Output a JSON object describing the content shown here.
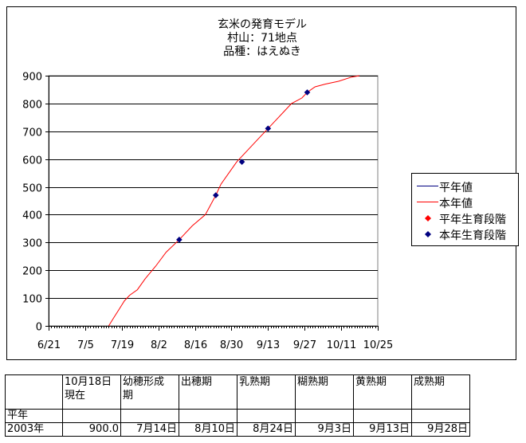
{
  "chart_data": {
    "type": "line",
    "title_lines": [
      "玄米の発育モデル",
      "村山：71地点",
      "品種：はえぬき"
    ],
    "xlabel": "",
    "ylabel": "",
    "x_tick_labels": [
      "6/21",
      "7/5",
      "7/19",
      "8/2",
      "8/16",
      "8/30",
      "9/13",
      "9/27",
      "10/11",
      "10/25"
    ],
    "xlim": [
      "6/21",
      "10/25"
    ],
    "ylim": [
      0,
      900
    ],
    "y_ticks": [
      0,
      100,
      200,
      300,
      400,
      500,
      600,
      700,
      800,
      900
    ],
    "grid": "horizontal",
    "legend_position": "right",
    "series": [
      {
        "name": "平年値",
        "kind": "line",
        "color": "#000080",
        "points": []
      },
      {
        "name": "本年値",
        "kind": "line",
        "color": "#ff0000",
        "points": [
          {
            "x": "7/14",
            "y": 0
          },
          {
            "x": "7/16",
            "y": 30
          },
          {
            "x": "7/18",
            "y": 60
          },
          {
            "x": "7/20",
            "y": 90
          },
          {
            "x": "7/22",
            "y": 110
          },
          {
            "x": "7/25",
            "y": 130
          },
          {
            "x": "7/28",
            "y": 170
          },
          {
            "x": "8/1",
            "y": 215
          },
          {
            "x": "8/5",
            "y": 265
          },
          {
            "x": "8/10",
            "y": 310
          },
          {
            "x": "8/15",
            "y": 360
          },
          {
            "x": "8/20",
            "y": 400
          },
          {
            "x": "8/24",
            "y": 470
          },
          {
            "x": "8/26",
            "y": 510
          },
          {
            "x": "8/29",
            "y": 550
          },
          {
            "x": "9/1",
            "y": 590
          },
          {
            "x": "9/5",
            "y": 630
          },
          {
            "x": "9/9",
            "y": 670
          },
          {
            "x": "9/13",
            "y": 710
          },
          {
            "x": "9/16",
            "y": 740
          },
          {
            "x": "9/19",
            "y": 770
          },
          {
            "x": "9/22",
            "y": 800
          },
          {
            "x": "9/24",
            "y": 810
          },
          {
            "x": "9/26",
            "y": 820
          },
          {
            "x": "9/28",
            "y": 840
          },
          {
            "x": "10/1",
            "y": 860
          },
          {
            "x": "10/5",
            "y": 870
          },
          {
            "x": "10/10",
            "y": 880
          },
          {
            "x": "10/15",
            "y": 895
          },
          {
            "x": "10/18",
            "y": 900
          }
        ]
      },
      {
        "name": "平年生育段階",
        "kind": "marker",
        "color": "#ff0000",
        "points": []
      },
      {
        "name": "本年生育段階",
        "kind": "marker",
        "color": "#000080",
        "points": [
          {
            "x": "8/10",
            "y": 310
          },
          {
            "x": "8/24",
            "y": 470
          },
          {
            "x": "9/3",
            "y": 590
          },
          {
            "x": "9/13",
            "y": 710
          },
          {
            "x": "9/28",
            "y": 840
          }
        ]
      }
    ]
  },
  "table": {
    "headers": [
      "",
      "10月18日\n現在",
      "幼穂形成\n期",
      "出穂期",
      "乳熟期",
      "糊熟期",
      "黄熟期",
      "成熟期"
    ],
    "rows": [
      [
        "平年",
        "",
        "",
        "",
        "",
        "",
        "",
        ""
      ],
      [
        "2003年",
        "900.0",
        "7月14日",
        "8月10日",
        "8月24日",
        "9月3日",
        "9月13日",
        "9月28日"
      ]
    ]
  }
}
